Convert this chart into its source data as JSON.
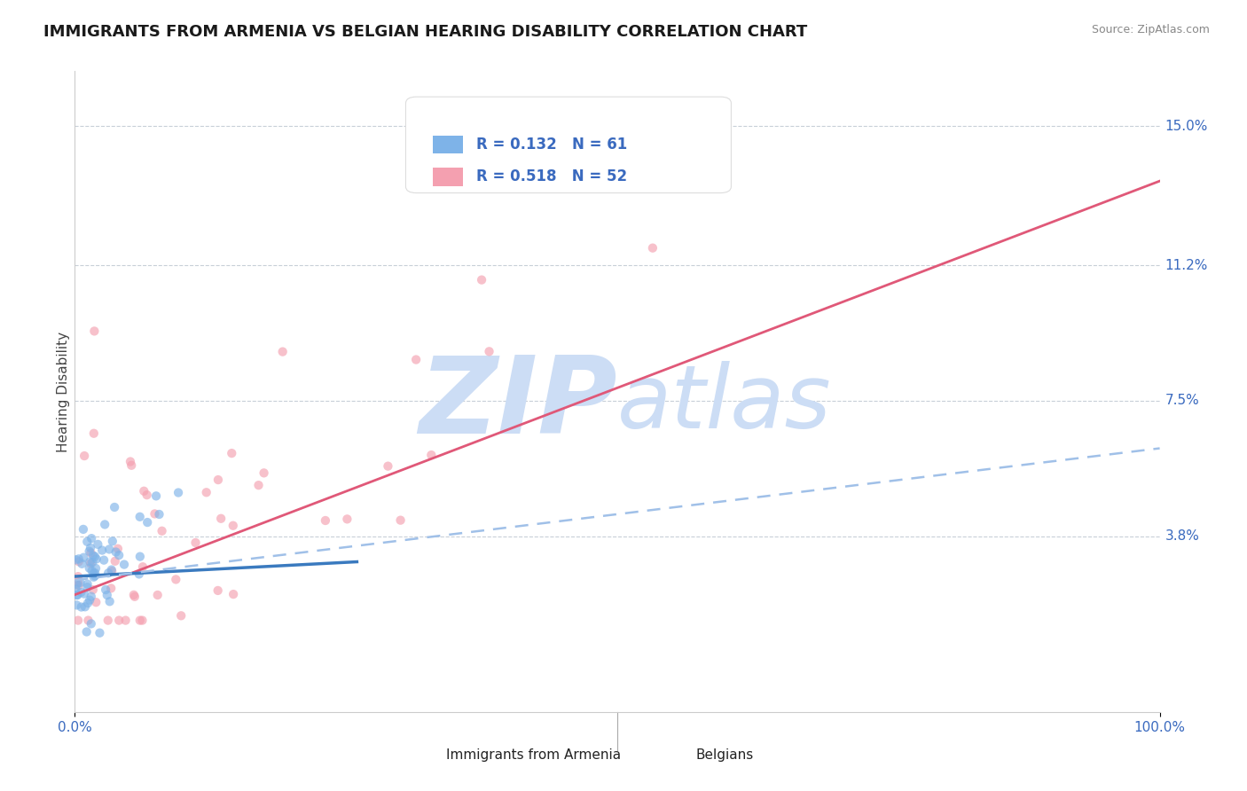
{
  "title": "IMMIGRANTS FROM ARMENIA VS BELGIAN HEARING DISABILITY CORRELATION CHART",
  "source_text": "Source: ZipAtlas.com",
  "ylabel": "Hearing Disability",
  "r_armenia": 0.132,
  "n_armenia": 61,
  "r_belgians": 0.518,
  "n_belgians": 52,
  "xlim": [
    0.0,
    1.0
  ],
  "ylim": [
    -0.01,
    0.165
  ],
  "yticks": [
    0.0,
    0.038,
    0.075,
    0.112,
    0.15
  ],
  "ytick_labels": [
    "",
    "3.8%",
    "7.5%",
    "11.2%",
    "15.0%"
  ],
  "xtick_labels": [
    "0.0%",
    "100.0%"
  ],
  "color_armenia": "#7eb3e8",
  "color_belgians": "#f4a0b0",
  "trendline_armenia_solid_color": "#3a7abf",
  "trendline_belgians_solid_color": "#e05878",
  "trendline_armenia_dashed_color": "#a0c0e8",
  "watermark_color": "#ccddf5",
  "background_color": "#ffffff",
  "title_fontsize": 13,
  "axis_label_fontsize": 11,
  "tick_fontsize": 11,
  "legend_fontsize": 12,
  "scatter_alpha": 0.65,
  "scatter_size": 55,
  "trendline_belgians": [
    0.0,
    0.022,
    1.0,
    0.135
  ],
  "trendline_armenia_solid": [
    0.0,
    0.027,
    0.26,
    0.031
  ],
  "trendline_armenia_dashed": [
    0.0,
    0.026,
    1.0,
    0.062
  ]
}
